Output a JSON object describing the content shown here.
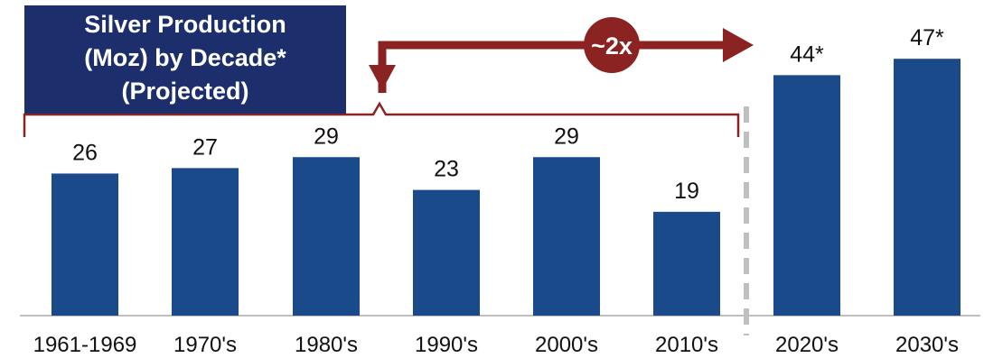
{
  "title_lines": [
    "Silver Production",
    "(Moz) by Decade*",
    "(Projected)"
  ],
  "annotation": "~2x",
  "chart_data": {
    "type": "bar",
    "categories": [
      "1961-1969",
      "1970's",
      "1980's",
      "1990's",
      "2000's",
      "2010's",
      "2020's",
      "2030's"
    ],
    "values": [
      26,
      27,
      29,
      23,
      29,
      19,
      44,
      47
    ],
    "value_labels": [
      "26",
      "27",
      "29",
      "23",
      "29",
      "19",
      "44*",
      "47*"
    ],
    "projected_from_index": 6,
    "title": "Silver Production (Moz) by Decade* (Projected)",
    "xlabel": "",
    "ylabel": "",
    "ylim": [
      0,
      50
    ],
    "grid": false,
    "bar_color": "#1b4a8a",
    "annotation_color": "#8b2323",
    "divider_color": "#bfbfbf"
  }
}
